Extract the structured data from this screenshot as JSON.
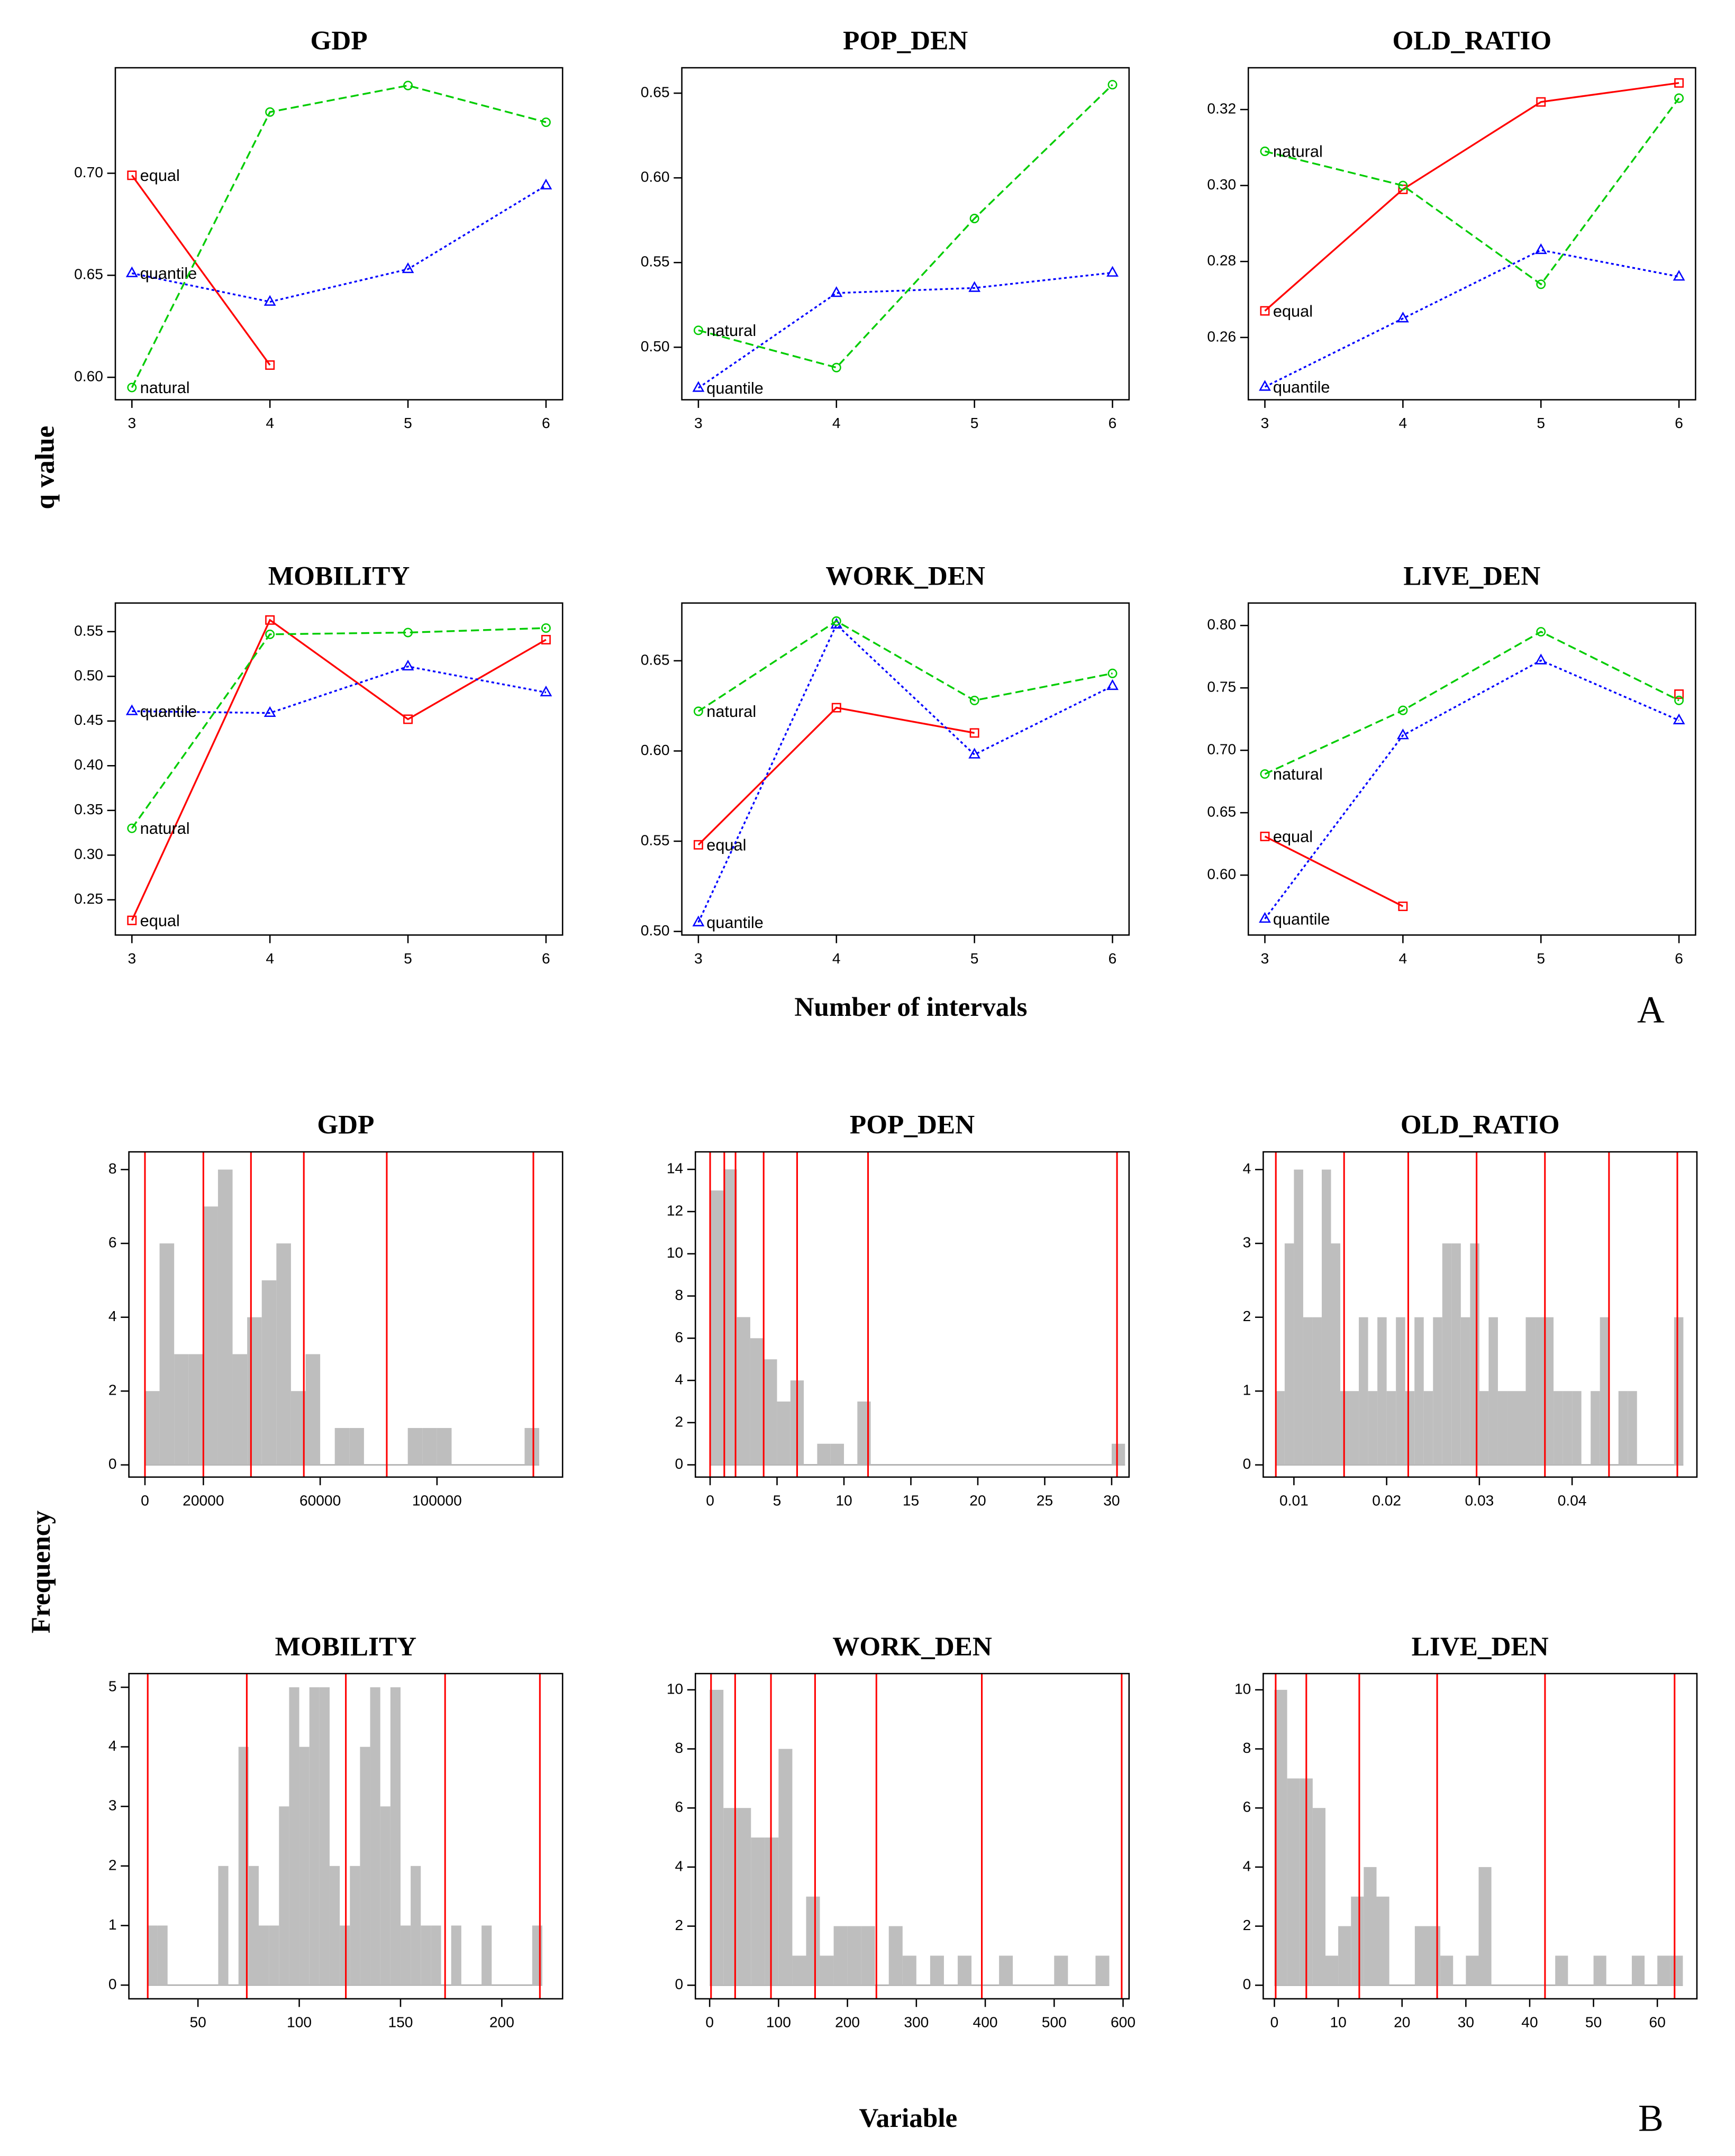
{
  "chart_data": [
    {
      "type": "line",
      "title": "GDP",
      "x": [
        3,
        4,
        5,
        6
      ],
      "xlim": [
        2.88,
        6.12
      ],
      "xticks": [
        3,
        4,
        5,
        6
      ],
      "ylim": [
        0.589,
        0.7517
      ],
      "yticks": [
        {
          "value": 0.6,
          "label": "0.60"
        },
        0.65,
        {
          "value": 0.7,
          "label": "0.70"
        }
      ],
      "series": [
        {
          "name": "equal",
          "color": "#ff0000",
          "marker": "square",
          "linestyle": "solid",
          "values": [
            0.699,
            0.606,
            null,
            null
          ]
        },
        {
          "name": "quantile",
          "color": "#0000ff",
          "marker": "triangle",
          "linestyle": "dotted",
          "values": [
            0.651,
            0.637,
            0.653,
            0.694
          ]
        },
        {
          "name": "natural",
          "color": "#00cc00",
          "marker": "circle",
          "linestyle": "dashed",
          "values": [
            0.595,
            0.73,
            0.743,
            0.725
          ]
        }
      ]
    },
    {
      "type": "line",
      "title": "POP_DEN",
      "x": [
        3,
        4,
        5,
        6
      ],
      "xlim": [
        2.88,
        6.12
      ],
      "xticks": [
        3,
        4,
        5,
        6
      ],
      "ylim": [
        0.469,
        0.665
      ],
      "yticks": [
        {
          "value": 0.5,
          "label": "0.50"
        },
        0.55,
        {
          "value": 0.6,
          "label": "0.60"
        },
        0.65
      ],
      "series": [
        {
          "name": "quantile",
          "color": "#0000ff",
          "marker": "triangle",
          "linestyle": "dotted",
          "values": [
            0.476,
            0.532,
            0.535,
            0.544
          ]
        },
        {
          "name": "natural",
          "color": "#00cc00",
          "marker": "circle",
          "linestyle": "dashed",
          "values": [
            0.51,
            0.488,
            0.576,
            0.655
          ]
        }
      ]
    },
    {
      "type": "line",
      "title": "OLD_RATIO",
      "x": [
        3,
        4,
        5,
        6
      ],
      "xlim": [
        2.88,
        6.12
      ],
      "xticks": [
        3,
        4,
        5,
        6
      ],
      "ylim": [
        0.2436,
        0.331
      ],
      "yticks": [
        0.26,
        0.28,
        {
          "value": 0.3,
          "label": "0.30"
        },
        0.32
      ],
      "series": [
        {
          "name": "equal",
          "color": "#ff0000",
          "marker": "square",
          "linestyle": "solid",
          "values": [
            0.267,
            0.299,
            0.322,
            0.327
          ]
        },
        {
          "name": "quantile",
          "color": "#0000ff",
          "marker": "triangle",
          "linestyle": "dotted",
          "values": [
            0.247,
            0.265,
            0.283,
            0.276
          ]
        },
        {
          "name": "natural",
          "color": "#00cc00",
          "marker": "circle",
          "linestyle": "dashed",
          "values": [
            0.309,
            0.3,
            0.274,
            0.323
          ]
        }
      ]
    },
    {
      "type": "line",
      "title": "MOBILITY",
      "x": [
        3,
        4,
        5,
        6
      ],
      "xlim": [
        2.88,
        6.12
      ],
      "xticks": [
        3,
        4,
        5,
        6
      ],
      "ylim": [
        0.2106,
        0.582
      ],
      "yticks": [
        0.25,
        {
          "value": 0.3,
          "label": "0.30"
        },
        0.35,
        {
          "value": 0.4,
          "label": "0.40"
        },
        0.45,
        {
          "value": 0.5,
          "label": "0.50"
        },
        0.55
      ],
      "series": [
        {
          "name": "equal",
          "color": "#ff0000",
          "marker": "square",
          "linestyle": "solid",
          "values": [
            0.227,
            0.563,
            0.452,
            0.541
          ]
        },
        {
          "name": "quantile",
          "color": "#0000ff",
          "marker": "triangle",
          "linestyle": "dotted",
          "values": [
            0.461,
            0.459,
            0.511,
            0.482
          ]
        },
        {
          "name": "natural",
          "color": "#00cc00",
          "marker": "circle",
          "linestyle": "dashed",
          "values": [
            0.33,
            0.547,
            0.549,
            0.554
          ]
        }
      ]
    },
    {
      "type": "line",
      "title": "WORK_DEN",
      "x": [
        3,
        4,
        5,
        6
      ],
      "xlim": [
        2.88,
        6.12
      ],
      "xticks": [
        3,
        4,
        5,
        6
      ],
      "ylim": [
        0.498,
        0.682
      ],
      "yticks": [
        {
          "value": 0.5,
          "label": "0.50"
        },
        0.55,
        {
          "value": 0.6,
          "label": "0.60"
        },
        0.65
      ],
      "series": [
        {
          "name": "equal",
          "color": "#ff0000",
          "marker": "square",
          "linestyle": "solid",
          "values": [
            0.548,
            0.624,
            0.61,
            null
          ]
        },
        {
          "name": "quantile",
          "color": "#0000ff",
          "marker": "triangle",
          "linestyle": "dotted",
          "values": [
            0.505,
            0.67,
            0.598,
            0.636
          ]
        },
        {
          "name": "natural",
          "color": "#00cc00",
          "marker": "circle",
          "linestyle": "dashed",
          "values": [
            0.622,
            0.672,
            0.628,
            0.643
          ]
        }
      ]
    },
    {
      "type": "line",
      "title": "LIVE_DEN",
      "x": [
        3,
        4,
        5,
        6
      ],
      "xlim": [
        2.88,
        6.12
      ],
      "xticks": [
        3,
        4,
        5,
        6
      ],
      "ylim": [
        0.552,
        0.818
      ],
      "yticks": [
        {
          "value": 0.6,
          "label": "0.60"
        },
        0.65,
        {
          "value": 0.7,
          "label": "0.70"
        },
        0.75,
        {
          "value": 0.8,
          "label": "0.80"
        }
      ],
      "series": [
        {
          "name": "equal",
          "color": "#ff0000",
          "marker": "square",
          "linestyle": "solid",
          "values": [
            0.631,
            0.575,
            null,
            0.745
          ]
        },
        {
          "name": "quantile",
          "color": "#0000ff",
          "marker": "triangle",
          "linestyle": "dotted",
          "values": [
            0.565,
            0.712,
            0.772,
            0.724
          ]
        },
        {
          "name": "natural",
          "color": "#00cc00",
          "marker": "circle",
          "linestyle": "dashed",
          "values": [
            0.681,
            0.732,
            0.795,
            0.74
          ]
        }
      ]
    },
    {
      "type": "histogram",
      "title": "GDP",
      "color": "#bebebe",
      "break_color": "#ff0000",
      "xlim": [
        -5500,
        143000
      ],
      "xticks": [
        0,
        20000,
        60000,
        100000
      ],
      "ylim": [
        -0.33,
        8.48
      ],
      "yticks": [
        0,
        2,
        4,
        6,
        8
      ],
      "bins": [
        0,
        5000,
        10000,
        15000,
        20000,
        25000,
        30000,
        35000,
        40000,
        45000,
        50000,
        55000,
        60000,
        65000,
        70000,
        75000,
        80000,
        85000,
        90000,
        95000,
        100000,
        105000,
        110000,
        115000,
        120000,
        125000,
        130000,
        135000
      ],
      "values": [
        2,
        6,
        3,
        3,
        7,
        8,
        3,
        4,
        5,
        6,
        2,
        3,
        0,
        1,
        1,
        0,
        0,
        0,
        1,
        1,
        1,
        0,
        0,
        0,
        0,
        0,
        1
      ],
      "breaks": [
        0,
        20000,
        36300,
        54400,
        82800,
        133000
      ]
    },
    {
      "type": "histogram",
      "title": "POP_DEN",
      "color": "#bebebe",
      "break_color": "#ff0000",
      "xlim": [
        -1.1,
        31.3
      ],
      "xticks": [
        0,
        5,
        10,
        15,
        20,
        25,
        30
      ],
      "ylim": [
        -0.58,
        14.83
      ],
      "yticks": [
        0,
        2,
        4,
        6,
        8,
        10,
        12,
        14
      ],
      "bins": [
        0,
        1,
        2,
        3,
        4,
        5,
        6,
        7,
        8,
        9,
        10,
        11,
        12,
        13,
        14,
        15,
        16,
        17,
        18,
        19,
        20,
        21,
        22,
        23,
        24,
        25,
        26,
        27,
        28,
        29,
        30,
        31
      ],
      "values": [
        13,
        14,
        7,
        6,
        5,
        3,
        4,
        0,
        1,
        1,
        0,
        3,
        0,
        0,
        0,
        0,
        0,
        0,
        0,
        0,
        0,
        0,
        0,
        0,
        0,
        0,
        0,
        0,
        0,
        0,
        1
      ],
      "breaks": [
        0,
        1.06,
        1.9,
        4.0,
        6.5,
        11.8,
        30.4
      ]
    },
    {
      "type": "histogram",
      "title": "OLD_RATIO",
      "color": "#bebebe",
      "break_color": "#ff0000",
      "xlim": [
        0.00669,
        0.05346
      ],
      "xticks": [
        0.01,
        0.02,
        0.03,
        0.04
      ],
      "ylim": [
        -0.165,
        4.24
      ],
      "yticks": [
        0,
        1,
        2,
        3,
        4
      ],
      "bins": [
        0.008,
        0.009,
        0.01,
        0.011,
        0.012,
        0.013,
        0.014,
        0.015,
        0.016,
        0.017,
        0.018,
        0.019,
        0.02,
        0.021,
        0.022,
        0.023,
        0.024,
        0.025,
        0.026,
        0.027,
        0.028,
        0.029,
        0.03,
        0.031,
        0.032,
        0.033,
        0.034,
        0.035,
        0.036,
        0.037,
        0.038,
        0.039,
        0.04,
        0.041,
        0.042,
        0.043,
        0.044,
        0.045,
        0.046,
        0.047,
        0.048,
        0.049,
        0.05,
        0.051,
        0.052
      ],
      "values": [
        1,
        3,
        4,
        2,
        2,
        4,
        3,
        1,
        1,
        2,
        1,
        2,
        1,
        2,
        1,
        2,
        1,
        2,
        3,
        3,
        2,
        3,
        1,
        2,
        1,
        1,
        1,
        2,
        2,
        2,
        1,
        1,
        1,
        0,
        1,
        2,
        0,
        1,
        1,
        0,
        0,
        0,
        0,
        2
      ],
      "breaks": [
        0.00805,
        0.01541,
        0.02233,
        0.0297,
        0.03707,
        0.04398,
        0.05135
      ]
    },
    {
      "type": "histogram",
      "title": "MOBILITY",
      "color": "#bebebe",
      "break_color": "#ff0000",
      "xlim": [
        15.9,
        230
      ],
      "xticks": [
        50,
        100,
        150,
        200
      ],
      "ylim": [
        -0.23,
        5.23
      ],
      "yticks": [
        0,
        1,
        2,
        3,
        4,
        5
      ],
      "bins": [
        25,
        30,
        35,
        40,
        45,
        50,
        55,
        60,
        65,
        70,
        75,
        80,
        85,
        90,
        95,
        100,
        105,
        110,
        115,
        120,
        125,
        130,
        135,
        140,
        145,
        150,
        155,
        160,
        165,
        170,
        175,
        180,
        185,
        190,
        195,
        200,
        205,
        210,
        215,
        220
      ],
      "values": [
        1,
        1,
        0,
        0,
        0,
        0,
        0,
        2,
        0,
        4,
        2,
        1,
        1,
        3,
        5,
        4,
        5,
        5,
        2,
        1,
        2,
        4,
        5,
        3,
        5,
        1,
        2,
        1,
        1,
        0,
        1,
        0,
        0,
        1,
        0,
        0,
        0,
        0,
        1
      ],
      "breaks": [
        25.2,
        74.1,
        123,
        172,
        218.8
      ]
    },
    {
      "type": "histogram",
      "title": "WORK_DEN",
      "color": "#bebebe",
      "break_color": "#ff0000",
      "xlim": [
        -20.7,
        608.7
      ],
      "xticks": [
        0,
        100,
        200,
        300,
        400,
        500,
        600
      ],
      "ylim": [
        -0.46,
        10.55
      ],
      "yticks": [
        0,
        2,
        4,
        6,
        8,
        10
      ],
      "bins": [
        0,
        20,
        40,
        60,
        80,
        100,
        120,
        140,
        160,
        180,
        200,
        220,
        240,
        260,
        280,
        300,
        320,
        340,
        360,
        380,
        400,
        420,
        440,
        460,
        480,
        500,
        520,
        540,
        560,
        580
      ],
      "values": [
        10,
        6,
        6,
        5,
        5,
        8,
        1,
        3,
        1,
        2,
        2,
        2,
        0,
        2,
        1,
        0,
        1,
        0,
        1,
        0,
        0,
        1,
        0,
        0,
        0,
        1,
        0,
        0,
        1
      ],
      "breaks": [
        2,
        37,
        89,
        153,
        242,
        395,
        598
      ]
    },
    {
      "type": "histogram",
      "title": "LIVE_DEN",
      "color": "#bebebe",
      "break_color": "#ff0000",
      "xlim": [
        -1.75,
        66.2
      ],
      "xticks": [
        0,
        10,
        20,
        30,
        40,
        50,
        60
      ],
      "ylim": [
        -0.46,
        10.55
      ],
      "yticks": [
        0,
        2,
        4,
        6,
        8,
        10
      ],
      "bins": [
        0,
        2,
        4,
        6,
        8,
        10,
        12,
        14,
        16,
        18,
        20,
        22,
        24,
        26,
        28,
        30,
        32,
        34,
        36,
        38,
        40,
        42,
        44,
        46,
        48,
        50,
        52,
        54,
        56,
        58,
        60,
        62,
        64
      ],
      "values": [
        10,
        7,
        7,
        6,
        1,
        2,
        3,
        4,
        3,
        0,
        0,
        2,
        2,
        1,
        0,
        1,
        4,
        0,
        0,
        0,
        0,
        0,
        1,
        0,
        0,
        1,
        0,
        0,
        1,
        0,
        1,
        1
      ],
      "breaks": [
        0.2,
        5.0,
        13.3,
        25.5,
        42.4,
        62.7
      ]
    }
  ],
  "panel_a": {
    "ylabel": "q value",
    "xlabel": "Number of intervals",
    "tag": "A"
  },
  "panel_b": {
    "ylabel": "Frequency",
    "xlabel": "Variable",
    "tag": "B"
  }
}
